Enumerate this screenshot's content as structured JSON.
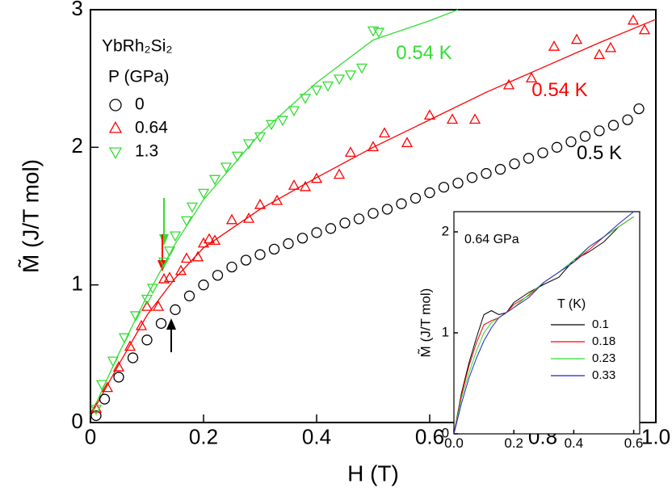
{
  "chart_data": [
    {
      "type": "scatter",
      "xlabel": "H (T)",
      "ylabel": "M̃ (J/T mol)",
      "xlim": [
        0,
        1.0
      ],
      "ylim": [
        0,
        3
      ],
      "xticks": [
        0,
        0.2,
        0.4,
        0.6,
        0.8,
        {
          "value": 1.0,
          "label": "1.0"
        }
      ],
      "yticks": [
        0,
        1,
        2,
        3
      ],
      "legend_heading": "YbRh₂Si₂",
      "legend_title": "P (GPa)",
      "series": [
        {
          "name": "0",
          "color": "#000000",
          "marker": "circle",
          "x": [
            0.01,
            0.025,
            0.05,
            0.075,
            0.1,
            0.125,
            0.15,
            0.175,
            0.2,
            0.225,
            0.25,
            0.275,
            0.3,
            0.325,
            0.35,
            0.375,
            0.4,
            0.425,
            0.45,
            0.475,
            0.5,
            0.525,
            0.55,
            0.575,
            0.6,
            0.625,
            0.65,
            0.675,
            0.7,
            0.725,
            0.75,
            0.775,
            0.8,
            0.825,
            0.85,
            0.875,
            0.9,
            0.925,
            0.95,
            0.97
          ],
          "values": [
            0.05,
            0.17,
            0.33,
            0.47,
            0.6,
            0.72,
            0.82,
            0.92,
            1.0,
            1.07,
            1.13,
            1.18,
            1.22,
            1.26,
            1.3,
            1.34,
            1.38,
            1.41,
            1.45,
            1.48,
            1.52,
            1.55,
            1.59,
            1.63,
            1.67,
            1.71,
            1.74,
            1.78,
            1.81,
            1.84,
            1.88,
            1.92,
            1.96,
            2.0,
            2.04,
            2.08,
            2.12,
            2.16,
            2.2,
            2.28
          ]
        },
        {
          "name": "0.64",
          "color": "#ff0000",
          "marker": "triangle-up",
          "x": [
            0.01,
            0.03,
            0.05,
            0.07,
            0.09,
            0.1,
            0.12,
            0.13,
            0.14,
            0.16,
            0.17,
            0.19,
            0.2,
            0.21,
            0.22,
            0.25,
            0.28,
            0.3,
            0.33,
            0.36,
            0.38,
            0.4,
            0.44,
            0.46,
            0.5,
            0.52,
            0.56,
            0.6,
            0.64,
            0.68,
            0.74,
            0.78,
            0.82,
            0.86,
            0.9,
            0.92,
            0.96,
            0.98
          ],
          "values": [
            0.1,
            0.25,
            0.4,
            0.55,
            0.7,
            0.84,
            0.84,
            1.04,
            1.05,
            1.1,
            1.19,
            1.2,
            1.3,
            1.33,
            1.32,
            1.47,
            1.48,
            1.58,
            1.61,
            1.72,
            1.71,
            1.77,
            1.8,
            1.96,
            2.0,
            2.1,
            2.03,
            2.23,
            2.2,
            2.2,
            2.45,
            2.5,
            2.73,
            2.78,
            2.67,
            2.72,
            2.92,
            2.85
          ]
        },
        {
          "name": "1.3",
          "color": "#33dd33",
          "marker": "triangle-down",
          "x": [
            0.01,
            0.02,
            0.04,
            0.06,
            0.08,
            0.1,
            0.11,
            0.13,
            0.14,
            0.15,
            0.17,
            0.18,
            0.2,
            0.22,
            0.24,
            0.26,
            0.28,
            0.3,
            0.32,
            0.34,
            0.36,
            0.38,
            0.4,
            0.42,
            0.44,
            0.46,
            0.48,
            0.5,
            0.51
          ],
          "values": [
            0.1,
            0.28,
            0.45,
            0.62,
            0.78,
            0.9,
            0.98,
            1.17,
            1.25,
            1.36,
            1.47,
            1.57,
            1.67,
            1.77,
            1.86,
            1.94,
            2.03,
            2.08,
            2.17,
            2.2,
            2.27,
            2.36,
            2.42,
            2.45,
            2.5,
            2.53,
            2.58,
            2.85,
            2.84
          ]
        }
      ],
      "fits": [
        {
          "color": "#ff0000",
          "x": [
            0,
            0.05,
            0.1,
            0.15,
            0.2,
            0.3,
            0.4,
            0.5,
            0.6,
            0.7,
            0.8,
            0.9,
            1.0
          ],
          "values": [
            0.05,
            0.42,
            0.78,
            1.05,
            1.27,
            1.55,
            1.78,
            2.0,
            2.2,
            2.4,
            2.58,
            2.76,
            2.93
          ]
        },
        {
          "color": "#33dd33",
          "x": [
            0,
            0.05,
            0.1,
            0.15,
            0.2,
            0.3,
            0.4,
            0.5,
            0.6,
            0.65
          ],
          "values": [
            0.05,
            0.5,
            0.92,
            1.3,
            1.62,
            2.1,
            2.47,
            2.78,
            2.92,
            3.0
          ]
        }
      ],
      "annotations": [
        {
          "text": "0.54 K",
          "color": "#33dd33",
          "x": 0.59,
          "y": 2.68
        },
        {
          "text": "0.54 K",
          "color": "#ff0000",
          "x": 0.83,
          "y": 2.41
        },
        {
          "text": "0.5 K",
          "color": "#000000",
          "x": 0.9,
          "y": 1.95
        }
      ]
    },
    {
      "type": "line",
      "ylabel": "M̃ (J/T mol)",
      "note": "0.64 GPa",
      "legend_title": "T (K)",
      "xlim": [
        0,
        0.62
      ],
      "ylim": [
        0,
        2.2
      ],
      "xticks": [
        {
          "value": 0,
          "label": "0.0"
        },
        0.2,
        0.4,
        0.6
      ],
      "yticks": [
        0,
        1,
        2
      ],
      "x": [
        0,
        0.025,
        0.05,
        0.075,
        0.1,
        0.125,
        0.15,
        0.175,
        0.2,
        0.25,
        0.3,
        0.35,
        0.4,
        0.45,
        0.5,
        0.55,
        0.6
      ],
      "series": [
        {
          "name": "0.1",
          "color": "#000000",
          "values": [
            0,
            0.4,
            0.7,
            0.95,
            1.18,
            1.22,
            1.18,
            1.2,
            1.3,
            1.4,
            1.48,
            1.55,
            1.72,
            1.8,
            1.9,
            2.05,
            2.15
          ]
        },
        {
          "name": "0.18",
          "color": "#ff0000",
          "values": [
            0,
            0.38,
            0.67,
            0.9,
            1.08,
            1.12,
            1.15,
            1.2,
            1.28,
            1.37,
            1.5,
            1.6,
            1.7,
            1.82,
            1.95,
            2.05,
            2.15
          ]
        },
        {
          "name": "0.23",
          "color": "#33dd33",
          "values": [
            0,
            0.35,
            0.6,
            0.82,
            1.0,
            1.1,
            1.15,
            1.2,
            1.25,
            1.38,
            1.5,
            1.6,
            1.72,
            1.85,
            1.95,
            2.05,
            2.15
          ]
        },
        {
          "name": "0.33",
          "color": "#2222cc",
          "values": [
            0,
            0.3,
            0.55,
            0.75,
            0.92,
            1.05,
            1.15,
            1.2,
            1.25,
            1.35,
            1.5,
            1.6,
            1.7,
            1.85,
            1.95,
            2.08,
            2.2
          ]
        }
      ]
    }
  ]
}
